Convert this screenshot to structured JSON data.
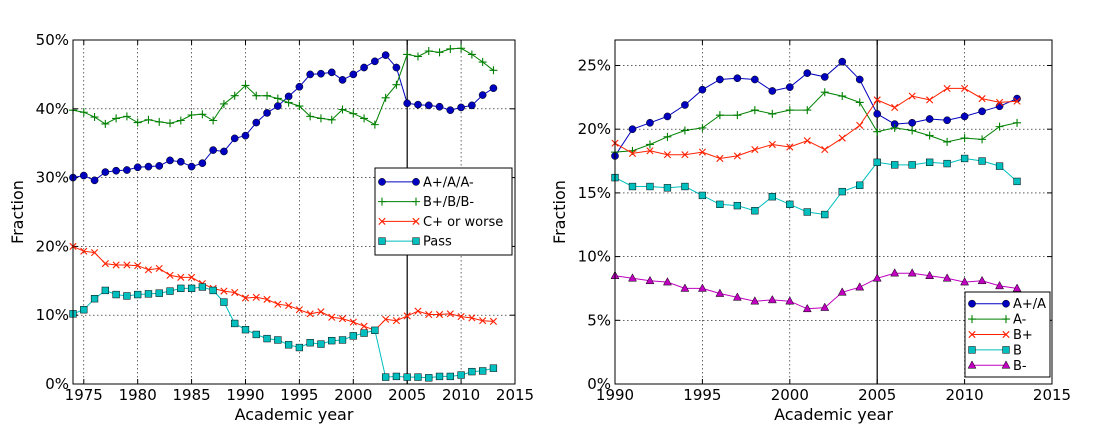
{
  "chart_data": [
    {
      "type": "line",
      "xlabel": "Academic year",
      "ylabel": "Fraction",
      "xlim": [
        1974,
        2015
      ],
      "ylim": [
        0,
        50
      ],
      "xticks": [
        "1975",
        "1980",
        "1985",
        "1990",
        "1995",
        "2000",
        "2005",
        "2010",
        "2015"
      ],
      "yticks": [
        "0%",
        "10%",
        "20%",
        "30%",
        "40%",
        "50%"
      ],
      "grid": true,
      "legend_position": "center-right",
      "vline_x": 2005,
      "x": [
        1974,
        1975,
        1976,
        1977,
        1978,
        1979,
        1980,
        1981,
        1982,
        1983,
        1984,
        1985,
        1986,
        1987,
        1988,
        1989,
        1990,
        1991,
        1992,
        1993,
        1994,
        1995,
        1996,
        1997,
        1998,
        1999,
        2000,
        2001,
        2002,
        2003,
        2004,
        2005,
        2006,
        2007,
        2008,
        2009,
        2010,
        2011,
        2012,
        2013
      ],
      "series": [
        {
          "name": "A+/A/A-",
          "color": "#0000bf",
          "marker": "circle",
          "values": [
            30,
            30.3,
            29.6,
            30.8,
            31,
            31.1,
            31.5,
            31.6,
            31.7,
            32.5,
            32.3,
            31.6,
            32.1,
            34,
            33.8,
            35.7,
            36.1,
            38,
            39.4,
            40.4,
            41.8,
            43.2,
            45,
            45.1,
            45.3,
            44.2,
            45,
            46,
            46.9,
            47.8,
            46,
            40.8,
            40.6,
            40.5,
            40.3,
            39.8,
            40.2,
            40.5,
            42,
            43
          ]
        },
        {
          "name": "B+/B/B-",
          "color": "#008000",
          "marker": "plus",
          "values": [
            39.8,
            39.5,
            38.8,
            37.8,
            38.6,
            38.9,
            38,
            38.4,
            38.1,
            37.9,
            38.3,
            39.1,
            39.2,
            38.3,
            40.7,
            41.9,
            43.4,
            41.9,
            41.9,
            41.5,
            40.9,
            40.4,
            38.9,
            38.6,
            38.4,
            39.9,
            39.3,
            38.6,
            37.7,
            41.6,
            43.5,
            47.9,
            47.6,
            48.4,
            48.2,
            48.7,
            48.8,
            47.9,
            46.8,
            45.6
          ]
        },
        {
          "name": "C+ or worse",
          "color": "#ff2000",
          "marker": "x",
          "values": [
            20,
            19.3,
            19.1,
            17.5,
            17.3,
            17.3,
            17.2,
            16.6,
            16.8,
            15.8,
            15.5,
            15.5,
            14.6,
            13.9,
            13.5,
            13.3,
            12.5,
            12.6,
            12.3,
            11.6,
            11.4,
            10.8,
            10.2,
            10.5,
            9.7,
            9.5,
            9,
            8.4,
            7.8,
            9.4,
            9.2,
            9.9,
            10.6,
            10.1,
            10.1,
            10.2,
            9.8,
            9.6,
            9.2,
            9.1
          ]
        },
        {
          "name": "Pass",
          "color": "#00bfbf",
          "marker": "square",
          "values": [
            10.2,
            10.8,
            12.4,
            13.6,
            13,
            12.8,
            13,
            13.1,
            13.2,
            13.5,
            13.9,
            13.9,
            14.1,
            13.6,
            11.9,
            8.8,
            7.9,
            7.2,
            6.6,
            6.4,
            5.7,
            5.3,
            6,
            5.8,
            6.3,
            6.4,
            7,
            7.4,
            7.8,
            1,
            1.1,
            1,
            1,
            0.9,
            1.1,
            1.1,
            1.3,
            1.8,
            1.9,
            2.3
          ]
        }
      ]
    },
    {
      "type": "line",
      "xlabel": "Academic year",
      "ylabel": "Fraction",
      "xlim": [
        1990,
        2015
      ],
      "ylim": [
        0,
        27
      ],
      "xticks": [
        "1990",
        "1995",
        "2000",
        "2005",
        "2010",
        "2015"
      ],
      "yticks": [
        "0%",
        "5%",
        "10%",
        "15%",
        "20%",
        "25%"
      ],
      "grid": true,
      "legend_position": "lower-right",
      "vline_x": 2005,
      "x": [
        1990,
        1991,
        1992,
        1993,
        1994,
        1995,
        1996,
        1997,
        1998,
        1999,
        2000,
        2001,
        2002,
        2003,
        2004,
        2005,
        2006,
        2007,
        2008,
        2009,
        2010,
        2011,
        2012,
        2013
      ],
      "series": [
        {
          "name": "A+/A",
          "color": "#0000bf",
          "marker": "circle",
          "values": [
            17.9,
            20,
            20.5,
            21,
            21.9,
            23.1,
            23.9,
            24,
            23.9,
            23,
            23.3,
            24.4,
            24.1,
            25.3,
            23.9,
            21.2,
            20.4,
            20.5,
            20.8,
            20.7,
            21,
            21.4,
            21.8,
            22.4
          ]
        },
        {
          "name": "A-",
          "color": "#008000",
          "marker": "plus",
          "values": [
            18.2,
            18.3,
            18.8,
            19.4,
            19.9,
            20.1,
            21.1,
            21.1,
            21.5,
            21.2,
            21.5,
            21.5,
            22.9,
            22.6,
            22.1,
            19.8,
            20.1,
            19.9,
            19.5,
            19,
            19.3,
            19.2,
            20.2,
            20.5
          ]
        },
        {
          "name": "B+",
          "color": "#ff2000",
          "marker": "x",
          "values": [
            18.9,
            18.1,
            18.3,
            18,
            18,
            18.2,
            17.7,
            17.9,
            18.4,
            18.8,
            18.6,
            19.1,
            18.4,
            19.3,
            20.3,
            22.3,
            21.7,
            22.6,
            22.3,
            23.2,
            23.2,
            22.4,
            22.1,
            22.2
          ]
        },
        {
          "name": "B",
          "color": "#00bfbf",
          "marker": "square",
          "values": [
            16.2,
            15.5,
            15.5,
            15.4,
            15.5,
            14.8,
            14.1,
            14,
            13.6,
            14.7,
            14.1,
            13.5,
            13.3,
            15.1,
            15.6,
            17.4,
            17.2,
            17.2,
            17.4,
            17.3,
            17.7,
            17.5,
            17.1,
            15.9
          ]
        },
        {
          "name": "B-",
          "color": "#bf00bf",
          "marker": "triangle",
          "values": [
            8.5,
            8.3,
            8.1,
            8,
            7.5,
            7.5,
            7.1,
            6.8,
            6.5,
            6.6,
            6.5,
            5.9,
            6,
            7.2,
            7.6,
            8.3,
            8.7,
            8.7,
            8.5,
            8.3,
            8,
            8.1,
            7.7,
            7.5
          ]
        }
      ]
    }
  ]
}
